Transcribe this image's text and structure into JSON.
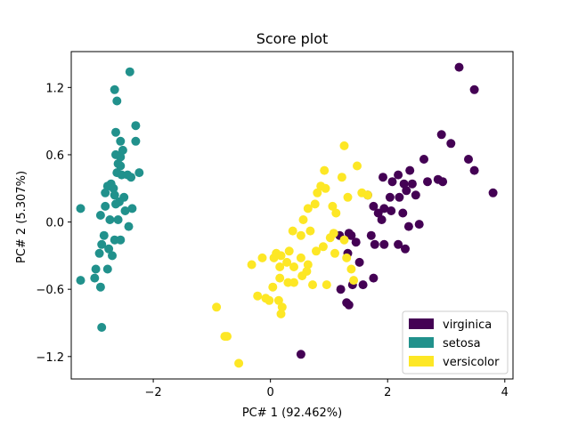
{
  "chart_data": {
    "type": "scatter",
    "title": "Score plot",
    "xlabel": "PC# 1 (92.462%)",
    "ylabel": "PC# 2 (5.307%)",
    "xlim": [
      -3.4,
      4.14
    ],
    "ylim": [
      -1.4,
      1.52
    ],
    "xticks": [
      -2,
      0,
      2,
      4
    ],
    "xtick_labels": [
      "−2",
      "0",
      "2",
      "4"
    ],
    "yticks": [
      -1.2,
      -0.6,
      0.0,
      0.6,
      1.2
    ],
    "ytick_labels": [
      "−1.2",
      "−0.6",
      "0.0",
      "0.6",
      "1.2"
    ],
    "grid": false,
    "legend_position": "lower-right",
    "series": [
      {
        "name": "virginica",
        "color": "#440154",
        "points": [
          [
            3.22,
            1.38
          ],
          [
            3.48,
            1.18
          ],
          [
            2.92,
            0.78
          ],
          [
            3.08,
            0.7
          ],
          [
            3.38,
            0.56
          ],
          [
            3.48,
            0.46
          ],
          [
            3.8,
            0.26
          ],
          [
            2.62,
            0.56
          ],
          [
            2.38,
            0.46
          ],
          [
            2.18,
            0.42
          ],
          [
            1.92,
            0.4
          ],
          [
            2.08,
            0.36
          ],
          [
            2.28,
            0.34
          ],
          [
            2.42,
            0.34
          ],
          [
            2.68,
            0.36
          ],
          [
            2.86,
            0.38
          ],
          [
            2.94,
            0.36
          ],
          [
            2.32,
            0.28
          ],
          [
            1.66,
            0.24
          ],
          [
            2.04,
            0.22
          ],
          [
            2.2,
            0.22
          ],
          [
            2.48,
            0.24
          ],
          [
            1.76,
            0.14
          ],
          [
            1.94,
            0.12
          ],
          [
            2.06,
            0.1
          ],
          [
            1.84,
            0.08
          ],
          [
            2.26,
            0.08
          ],
          [
            1.9,
            0.02
          ],
          [
            2.54,
            -0.02
          ],
          [
            2.36,
            -0.04
          ],
          [
            1.34,
            -0.1
          ],
          [
            1.38,
            -0.12
          ],
          [
            1.72,
            -0.12
          ],
          [
            1.46,
            -0.18
          ],
          [
            1.78,
            -0.2
          ],
          [
            1.94,
            -0.2
          ],
          [
            2.18,
            -0.2
          ],
          [
            2.3,
            -0.24
          ],
          [
            1.32,
            -0.28
          ],
          [
            1.52,
            -0.36
          ],
          [
            1.76,
            -0.5
          ],
          [
            1.4,
            -0.56
          ],
          [
            1.58,
            -0.56
          ],
          [
            1.2,
            -0.6
          ],
          [
            1.3,
            -0.72
          ],
          [
            1.34,
            -0.74
          ],
          [
            0.52,
            -1.18
          ],
          [
            1.18,
            -0.12
          ]
        ]
      },
      {
        "name": "setosa",
        "color": "#21918c",
        "points": [
          [
            -2.4,
            1.34
          ],
          [
            -2.66,
            1.18
          ],
          [
            -2.62,
            1.08
          ],
          [
            -2.3,
            0.86
          ],
          [
            -2.64,
            0.8
          ],
          [
            -2.56,
            0.72
          ],
          [
            -2.3,
            0.72
          ],
          [
            -2.52,
            0.64
          ],
          [
            -2.64,
            0.6
          ],
          [
            -2.56,
            0.58
          ],
          [
            -2.6,
            0.52
          ],
          [
            -2.56,
            0.5
          ],
          [
            -2.62,
            0.44
          ],
          [
            -2.54,
            0.42
          ],
          [
            -2.24,
            0.44
          ],
          [
            -2.44,
            0.42
          ],
          [
            -2.38,
            0.4
          ],
          [
            -2.72,
            0.34
          ],
          [
            -2.78,
            0.32
          ],
          [
            -2.68,
            0.3
          ],
          [
            -2.82,
            0.26
          ],
          [
            -2.66,
            0.24
          ],
          [
            -2.5,
            0.22
          ],
          [
            -2.58,
            0.18
          ],
          [
            -2.64,
            0.16
          ],
          [
            -2.82,
            0.14
          ],
          [
            -2.48,
            0.1
          ],
          [
            -2.36,
            0.12
          ],
          [
            -3.24,
            0.12
          ],
          [
            -2.9,
            0.06
          ],
          [
            -2.74,
            0.02
          ],
          [
            -2.6,
            0.02
          ],
          [
            -2.42,
            -0.04
          ],
          [
            -2.84,
            -0.12
          ],
          [
            -2.66,
            -0.16
          ],
          [
            -2.56,
            -0.16
          ],
          [
            -2.88,
            -0.2
          ],
          [
            -2.76,
            -0.24
          ],
          [
            -2.92,
            -0.28
          ],
          [
            -2.7,
            -0.3
          ],
          [
            -2.98,
            -0.42
          ],
          [
            -2.78,
            -0.42
          ],
          [
            -3.24,
            -0.52
          ],
          [
            -3.0,
            -0.5
          ],
          [
            -2.9,
            -0.58
          ],
          [
            -2.88,
            -0.94
          ]
        ]
      },
      {
        "name": "versicolor",
        "color": "#fde725",
        "points": [
          [
            1.26,
            0.68
          ],
          [
            0.92,
            0.46
          ],
          [
            1.48,
            0.5
          ],
          [
            1.22,
            0.4
          ],
          [
            0.86,
            0.32
          ],
          [
            0.94,
            0.3
          ],
          [
            0.8,
            0.26
          ],
          [
            1.32,
            0.22
          ],
          [
            1.56,
            0.26
          ],
          [
            1.66,
            0.24
          ],
          [
            0.76,
            0.16
          ],
          [
            1.06,
            0.14
          ],
          [
            0.64,
            0.12
          ],
          [
            1.12,
            0.08
          ],
          [
            0.56,
            0.02
          ],
          [
            0.68,
            -0.08
          ],
          [
            1.08,
            -0.1
          ],
          [
            0.38,
            -0.08
          ],
          [
            0.52,
            -0.12
          ],
          [
            1.02,
            -0.14
          ],
          [
            1.26,
            -0.16
          ],
          [
            0.9,
            -0.22
          ],
          [
            0.78,
            -0.26
          ],
          [
            1.1,
            -0.28
          ],
          [
            1.3,
            -0.32
          ],
          [
            0.32,
            -0.26
          ],
          [
            0.1,
            -0.28
          ],
          [
            0.18,
            -0.3
          ],
          [
            -0.14,
            -0.32
          ],
          [
            0.06,
            -0.32
          ],
          [
            0.28,
            -0.36
          ],
          [
            0.52,
            -0.32
          ],
          [
            0.64,
            -0.38
          ],
          [
            0.16,
            -0.4
          ],
          [
            0.4,
            -0.4
          ],
          [
            0.62,
            -0.44
          ],
          [
            0.54,
            -0.48
          ],
          [
            0.16,
            -0.5
          ],
          [
            0.3,
            -0.54
          ],
          [
            0.4,
            -0.54
          ],
          [
            0.72,
            -0.56
          ],
          [
            0.96,
            -0.56
          ],
          [
            -0.32,
            -0.38
          ],
          [
            0.04,
            -0.58
          ],
          [
            -0.22,
            -0.66
          ],
          [
            -0.08,
            -0.68
          ],
          [
            -0.02,
            -0.7
          ],
          [
            0.14,
            -0.7
          ],
          [
            0.2,
            -0.76
          ],
          [
            0.18,
            -0.82
          ],
          [
            -0.92,
            -0.76
          ],
          [
            -0.78,
            -1.02
          ],
          [
            -0.74,
            -1.02
          ],
          [
            -0.54,
            -1.26
          ],
          [
            1.38,
            -0.42
          ],
          [
            1.42,
            -0.52
          ]
        ]
      }
    ]
  }
}
